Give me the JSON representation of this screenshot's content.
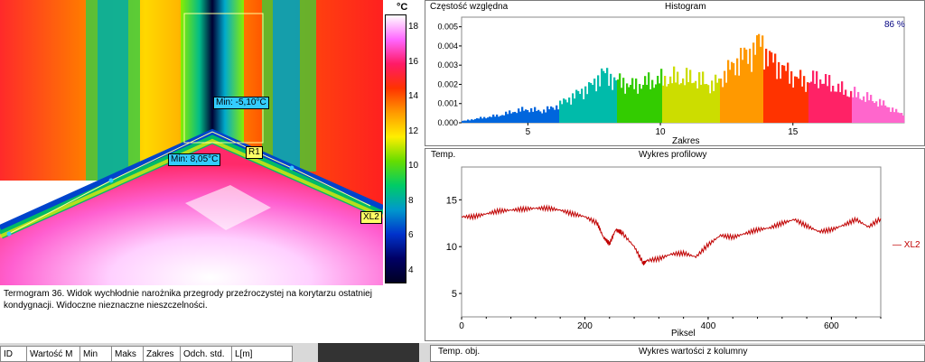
{
  "thermogram": {
    "scale_unit": "°C",
    "scale_ticks": [
      "18",
      "16",
      "14",
      "12",
      "10",
      "8",
      "6",
      "4"
    ],
    "scale_colors": [
      "#ffffff",
      "#ff66ff",
      "#ff1a66",
      "#ff3300",
      "#ff9900",
      "#ffee00",
      "#66dd00",
      "#00cc66",
      "#0099cc",
      "#0033cc",
      "#000066",
      "#000022"
    ],
    "min_label_1": "Min: -5,10°C",
    "min_label_2": "Min: 8,05°C",
    "r1_label": "R1",
    "xl2_label": "XL2"
  },
  "caption": "Termogram 36. Widok wychłodnie narożnika przegrody przeźroczystej na korytarzu ostatniej kondygnacji. Widoczne nieznaczne nieszczelności.",
  "histogram": {
    "ylabel": "Częstość względna",
    "title": "Histogram",
    "percent": "86 %",
    "xlabel": "Zakres",
    "yticks": [
      "0.005",
      "0.004",
      "0.003",
      "0.002",
      "0.001",
      "0.000"
    ],
    "xticks": [
      "5",
      "10",
      "15"
    ]
  },
  "profile": {
    "ylabel": "Temp.",
    "title": "Wykres profilowy",
    "xlabel": "Piksel",
    "legend": "XL2",
    "yticks": [
      "15",
      "10",
      "5"
    ],
    "xticks": [
      "0",
      "200",
      "400",
      "600"
    ]
  },
  "stats_table": {
    "headers": [
      "ID",
      "Wartość M",
      "Min",
      "Maks",
      "Zakres",
      "Odch. std.",
      "L[m]"
    ]
  },
  "column_chart": {
    "ylabel": "Temp. obj.",
    "title": "Wykres wartości z kolumny"
  },
  "chart_data": [
    {
      "type": "bar",
      "title": "Histogram",
      "xlabel": "Zakres",
      "ylabel": "Częstość względna",
      "xlim": [
        2.5,
        19.2
      ],
      "ylim": [
        0,
        0.0055
      ],
      "x": [
        2.6,
        3.0,
        3.5,
        4.0,
        4.5,
        5.0,
        5.5,
        6.0,
        6.5,
        7.0,
        7.5,
        7.8,
        8.0,
        8.5,
        9.0,
        9.5,
        10.0,
        10.5,
        11.0,
        11.5,
        12.0,
        12.5,
        13.0,
        13.5,
        13.8,
        14.0,
        14.5,
        15.0,
        15.5,
        16.0,
        16.5,
        17.0,
        17.5,
        18.0,
        18.5,
        19.0
      ],
      "values": [
        0.0001,
        0.0002,
        0.0003,
        0.0004,
        0.0006,
        0.0007,
        0.0006,
        0.0008,
        0.0012,
        0.0016,
        0.002,
        0.0026,
        0.0024,
        0.0021,
        0.0019,
        0.0021,
        0.0022,
        0.0023,
        0.0023,
        0.0022,
        0.0019,
        0.0026,
        0.0033,
        0.0037,
        0.0043,
        0.0035,
        0.0029,
        0.0024,
        0.0021,
        0.0023,
        0.0019,
        0.0016,
        0.0014,
        0.0012,
        0.0009,
        0.0005
      ]
    },
    {
      "type": "line",
      "title": "Wykres profilowy",
      "xlabel": "Piksel",
      "ylabel": "Temp.",
      "xlim": [
        0,
        680
      ],
      "ylim": [
        2.5,
        18.5
      ],
      "series": [
        {
          "name": "XL2",
          "color": "#c00000",
          "x": [
            0,
            20,
            40,
            60,
            80,
            100,
            120,
            140,
            160,
            180,
            200,
            220,
            230,
            240,
            250,
            260,
            280,
            295,
            300,
            320,
            340,
            360,
            380,
            400,
            420,
            440,
            460,
            480,
            500,
            520,
            540,
            560,
            580,
            600,
            620,
            640,
            660,
            680
          ],
          "values": [
            13.2,
            13.2,
            13.5,
            13.8,
            13.9,
            14.0,
            14.1,
            14.1,
            13.9,
            13.5,
            13.2,
            12.5,
            11.0,
            10.3,
            11.8,
            11.5,
            10.0,
            8.2,
            8.5,
            8.7,
            9.2,
            9.3,
            8.9,
            10.2,
            11.2,
            11.0,
            11.4,
            11.8,
            12.0,
            12.5,
            12.9,
            12.2,
            11.6,
            11.8,
            12.3,
            12.9,
            12.1,
            13.0
          ]
        }
      ]
    }
  ]
}
